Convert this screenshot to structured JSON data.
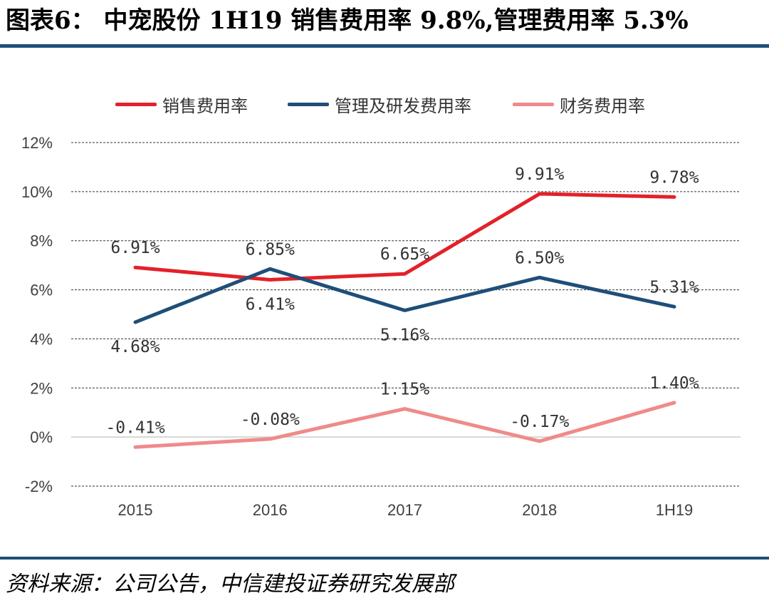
{
  "title": "图表6： 中宠股份 1H19 销售费用率 9.8%,管理费用率 5.3%",
  "source": "资料来源：公司公告，中信建投证券研究发展部",
  "chart_data": {
    "type": "line",
    "categories": [
      "2015",
      "2016",
      "2017",
      "2018",
      "1H19"
    ],
    "ylim": [
      -0.02,
      0.12
    ],
    "yticks": [
      -0.02,
      0,
      0.02,
      0.04,
      0.06,
      0.08,
      0.1,
      0.12
    ],
    "ytick_labels": [
      "-2%",
      "0%",
      "2%",
      "4%",
      "6%",
      "8%",
      "10%",
      "12%"
    ],
    "grid": "horizontal dashed",
    "legend_position": "top",
    "series": [
      {
        "name": "销售费用率",
        "color": "#e3212a",
        "values": [
          0.0691,
          0.0641,
          0.0665,
          0.0991,
          0.0978
        ],
        "labels": [
          "6.91%",
          "6.41%",
          "6.65%",
          "9.91%",
          "9.78%"
        ],
        "label_side": [
          "above",
          "below",
          "above",
          "above",
          "above"
        ]
      },
      {
        "name": "管理及研发费用率",
        "color": "#1f4e79",
        "values": [
          0.0468,
          0.0685,
          0.0516,
          0.065,
          0.0531
        ],
        "labels": [
          "4.68%",
          "6.85%",
          "5.16%",
          "6.50%",
          "5.31%"
        ],
        "label_side": [
          "below",
          "above",
          "below",
          "above",
          "above"
        ]
      },
      {
        "name": "财务费用率",
        "color": "#f08a8a",
        "values": [
          -0.0041,
          -0.0008,
          0.0115,
          -0.0017,
          0.014
        ],
        "labels": [
          "-0.41%",
          "-0.08%",
          "1.15%",
          "-0.17%",
          "1.40%"
        ],
        "label_side": [
          "above",
          "above",
          "above",
          "above",
          "above"
        ]
      }
    ]
  }
}
